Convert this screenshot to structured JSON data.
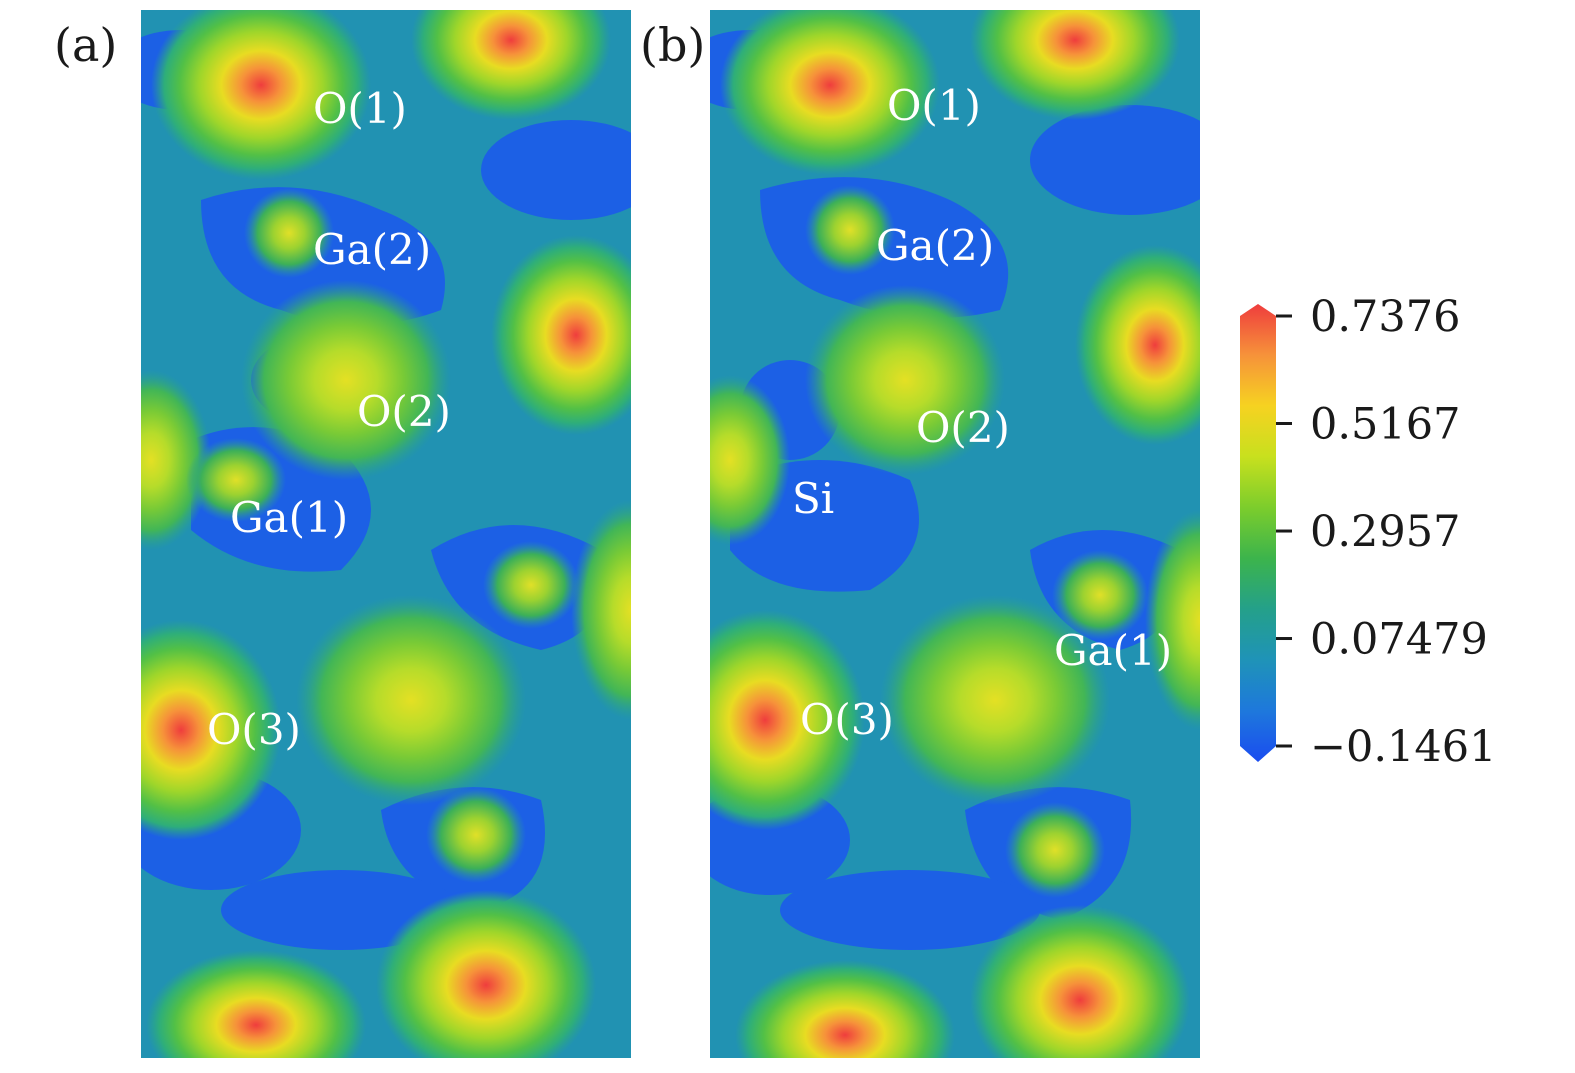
{
  "chart_data": {
    "type": "heatmap",
    "panels": [
      {
        "tag": "(a)",
        "labels": [
          {
            "text": "O(1)"
          },
          {
            "text": "Ga(2)"
          },
          {
            "text": "O(2)"
          },
          {
            "text": "Ga(1)"
          },
          {
            "text": "O(3)"
          }
        ]
      },
      {
        "tag": "(b)",
        "labels": [
          {
            "text": "O(1)"
          },
          {
            "text": "Ga(2)"
          },
          {
            "text": "O(2)"
          },
          {
            "text": "Si"
          },
          {
            "text": "Ga(1)"
          },
          {
            "text": "O(3)"
          }
        ]
      }
    ],
    "colorbar": {
      "min": -0.1461,
      "max": 0.7376,
      "ticks": [
        {
          "value": 0.7376,
          "label": "0.7376"
        },
        {
          "value": 0.5167,
          "label": "0.5167"
        },
        {
          "value": 0.2957,
          "label": "0.2957"
        },
        {
          "value": 0.07479,
          "label": "0.07479"
        },
        {
          "value": -0.1461,
          "label": "−0.1461"
        }
      ],
      "colors": [
        "#1a4cf0",
        "#1e78dc",
        "#1f93b8",
        "#24a08a",
        "#3cb44c",
        "#7ccd2c",
        "#c8e01e",
        "#f6d221",
        "#f6923a",
        "#ef3d3d"
      ]
    }
  }
}
